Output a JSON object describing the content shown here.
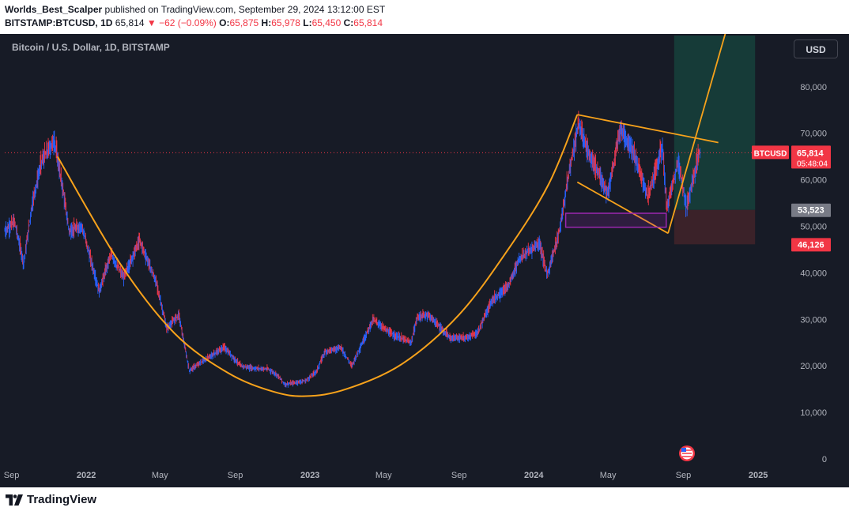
{
  "header": {
    "author": "Worlds_Best_Scalper",
    "published": "published on TradingView.com, September 29, 2024 13:12:00 EST",
    "symbol": "BITSTAMP:BTCUSD, 1D",
    "price": "65,814",
    "arrow": "▼",
    "change": "−62 (−0.09%)",
    "o_label": "O:",
    "o_value": "65,875",
    "h_label": "H:",
    "h_value": "65,978",
    "l_label": "L:",
    "l_value": "65,450",
    "c_label": "C:",
    "c_value": "65,814"
  },
  "chart_title": "Bitcoin / U.S. Dollar, 1D, BITSTAMP",
  "currency_button": "USD",
  "footer_brand": "TradingView",
  "colors": {
    "background": "#171b26",
    "bull": "#2962ff",
    "bear": "#f23645",
    "trend": "#f7a21b",
    "box": "#9c27b0",
    "target_zone": "#163b38",
    "stop_zone": "#3b2229"
  },
  "chart_data": {
    "type": "line",
    "title": "Bitcoin / U.S. Dollar, 1D, BITSTAMP",
    "xlabel": "",
    "ylabel": "",
    "xlim": [
      "2021-08-21",
      "2025-02-15"
    ],
    "ylim": [
      0,
      91000
    ],
    "grid": false,
    "x_ticks": [
      {
        "date": "2021-09-01",
        "label": "Sep"
      },
      {
        "date": "2022-01-01",
        "label": "2022"
      },
      {
        "date": "2022-05-01",
        "label": "May"
      },
      {
        "date": "2022-09-01",
        "label": "Sep"
      },
      {
        "date": "2023-01-01",
        "label": "2023"
      },
      {
        "date": "2023-05-01",
        "label": "May"
      },
      {
        "date": "2023-09-01",
        "label": "Sep"
      },
      {
        "date": "2024-01-01",
        "label": "2024"
      },
      {
        "date": "2024-05-01",
        "label": "May"
      },
      {
        "date": "2024-09-01",
        "label": "Sep"
      },
      {
        "date": "2025-01-01",
        "label": "2025"
      }
    ],
    "y_ticks": [
      {
        "value": 80000,
        "label": "80,000"
      },
      {
        "value": 70000,
        "label": "70,000"
      },
      {
        "value": 60000,
        "label": "60,000"
      },
      {
        "value": 50000,
        "label": "50,000"
      },
      {
        "value": 40000,
        "label": "40,000"
      },
      {
        "value": 30000,
        "label": "30,000"
      },
      {
        "value": 20000,
        "label": "20,000"
      },
      {
        "value": 10000,
        "label": "10,000"
      },
      {
        "value": 0,
        "label": "0"
      }
    ],
    "series": [
      {
        "x": [
          "2021-08-21",
          "2021-09-06",
          "2021-09-21",
          "2021-10-05",
          "2021-10-20",
          "2021-11-10",
          "2021-11-25",
          "2021-12-04",
          "2021-12-25",
          "2022-01-22",
          "2022-02-10",
          "2022-03-03",
          "2022-03-29",
          "2022-04-25",
          "2022-05-09",
          "2022-05-12",
          "2022-06-01",
          "2022-06-18",
          "2022-07-10",
          "2022-08-14",
          "2022-09-10",
          "2022-09-30",
          "2022-10-25",
          "2022-11-09",
          "2022-11-21",
          "2022-12-25",
          "2023-01-12",
          "2023-01-25",
          "2023-02-20",
          "2023-03-10",
          "2023-04-14",
          "2023-05-12",
          "2023-06-15",
          "2023-06-25",
          "2023-07-13",
          "2023-08-17",
          "2023-09-11",
          "2023-10-01",
          "2023-10-24",
          "2023-11-20",
          "2023-12-08",
          "2024-01-10",
          "2024-01-23",
          "2024-02-12",
          "2024-02-28",
          "2024-03-14",
          "2024-04-01",
          "2024-04-17",
          "2024-05-01",
          "2024-05-21",
          "2024-06-10",
          "2024-07-05",
          "2024-07-29",
          "2024-08-05",
          "2024-08-24",
          "2024-09-06",
          "2024-09-27",
          "2024-09-29"
        ],
        "values": [
          49000,
          51000,
          42000,
          55000,
          64000,
          68500,
          57000,
          49000,
          50000,
          36000,
          44000,
          39000,
          47000,
          38000,
          30000,
          28000,
          31000,
          19000,
          21000,
          24000,
          20000,
          19500,
          19300,
          18000,
          16000,
          16800,
          18900,
          23000,
          24000,
          20000,
          30000,
          27000,
          25000,
          30500,
          31000,
          26000,
          26000,
          27000,
          34000,
          37000,
          43000,
          46500,
          39500,
          49000,
          62000,
          72000,
          65000,
          61000,
          57000,
          71000,
          66500,
          56500,
          67000,
          54000,
          64000,
          54000,
          66000,
          65814
        ]
      }
    ],
    "annotations": {
      "last_price": 65814,
      "last_price_label": "65,814",
      "countdown": "05:48:04",
      "series_badge": "BTCUSD",
      "entry_price": 53523,
      "entry_label": "53,523",
      "stop_price": 46126,
      "stop_label": "46,126",
      "target_zone": {
        "x_start": "2024-08-17",
        "x_end": "2024-12-27",
        "y_top": 91000,
        "y_bottom": 53523
      },
      "stop_zone": {
        "x_start": "2024-08-17",
        "x_end": "2024-12-27",
        "y_top": 53523,
        "y_bottom": 46126
      },
      "cup_curve": [
        [
          "2021-11-15",
          65000
        ],
        [
          "2022-02-25",
          42000
        ],
        [
          "2022-05-25",
          27000
        ],
        [
          "2022-08-20",
          18500
        ],
        [
          "2022-11-01",
          14500
        ],
        [
          "2022-12-25",
          13500
        ],
        [
          "2023-03-01",
          15000
        ],
        [
          "2023-06-01",
          20500
        ],
        [
          "2023-09-01",
          31000
        ],
        [
          "2023-11-20",
          45000
        ],
        [
          "2024-01-25",
          59000
        ],
        [
          "2024-03-12",
          74000
        ]
      ],
      "wedge_upper": [
        [
          "2024-03-12",
          74000
        ],
        [
          "2024-10-28",
          68000
        ]
      ],
      "wedge_lower": [
        [
          "2024-03-12",
          59500
        ],
        [
          "2024-08-07",
          48500
        ]
      ],
      "breakout_line": [
        [
          "2024-08-07",
          48500
        ],
        [
          "2024-11-14",
          94000
        ]
      ],
      "demand_box": {
        "x_start": "2024-02-22",
        "x_end": "2024-08-04",
        "y_top": 52800,
        "y_bottom": 49800
      }
    }
  }
}
